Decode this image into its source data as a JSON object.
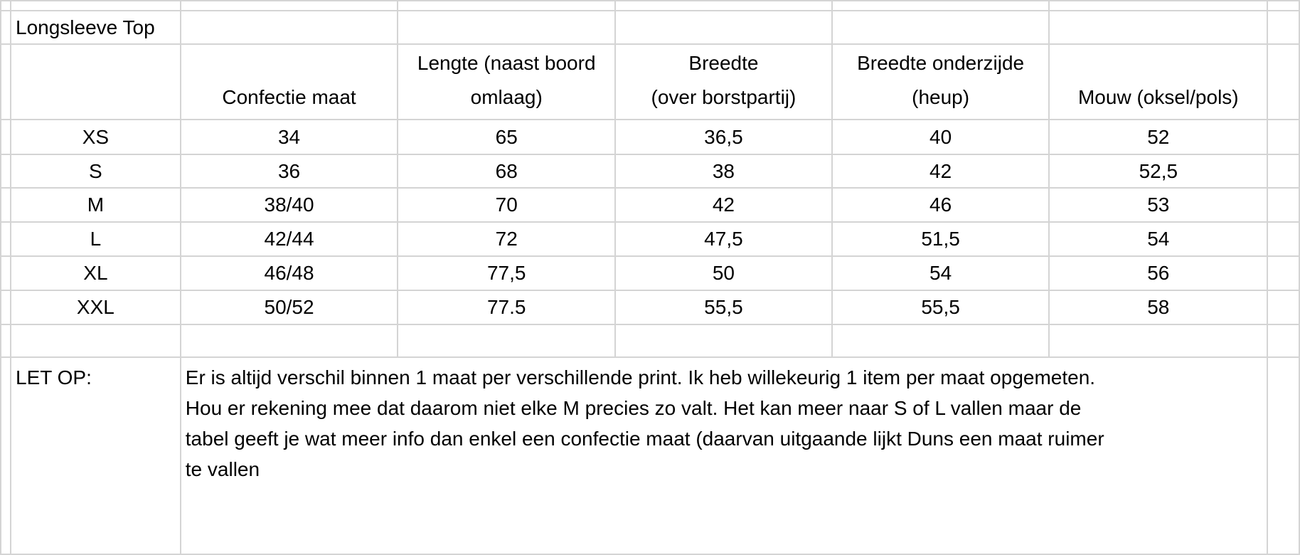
{
  "title": "Longsleeve Top",
  "headers": [
    {
      "lines": [
        "Confectie maat"
      ]
    },
    {
      "lines": [
        "Lengte (naast boord",
        "omlaag)"
      ]
    },
    {
      "lines": [
        "Breedte",
        "(over borstpartij)"
      ]
    },
    {
      "lines": [
        "Breedte onderzijde",
        "(heup)"
      ]
    },
    {
      "lines": [
        "Mouw (oksel/pols)"
      ]
    }
  ],
  "rows": [
    [
      "XS",
      "34",
      "65",
      "36,5",
      "40",
      "52"
    ],
    [
      "S",
      "36",
      "68",
      "38",
      "42",
      "52,5"
    ],
    [
      "M",
      "38/40",
      "70",
      "42",
      "46",
      "53"
    ],
    [
      "L",
      "42/44",
      "72",
      "47,5",
      "51,5",
      "54"
    ],
    [
      "XL",
      "46/48",
      "77,5",
      "50",
      "54",
      "56"
    ],
    [
      "XXL",
      "50/52",
      "77.5",
      "55,5",
      "55,5",
      "58"
    ]
  ],
  "note": {
    "label": "LET OP:",
    "lines": [
      "Er is altijd verschil binnen 1 maat per verschillende print. Ik heb willekeurig 1 item per maat opgemeten.",
      "Hou er rekening mee dat daarom niet elke M precies zo valt. Het kan meer naar S of L vallen maar de",
      "tabel geeft je wat meer info dan enkel een confectie maat (daarvan uitgaande lijkt Duns een maat ruimer",
      "te vallen"
    ]
  }
}
